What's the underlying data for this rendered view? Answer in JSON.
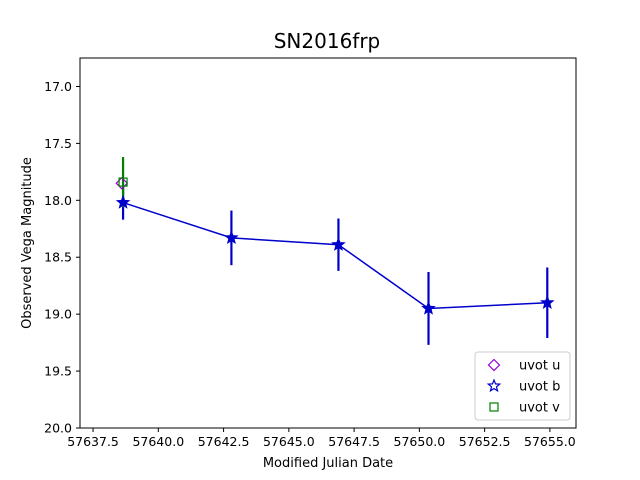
{
  "chart_data": {
    "type": "scatter",
    "title": "SN2016frp",
    "xlabel": "Modified Julian Date",
    "ylabel": "Observed Vega Magnitude",
    "xlim": [
      57637.0,
      57656.0
    ],
    "ylim": [
      20.0,
      16.75
    ],
    "y_inverted": true,
    "xticks": [
      "57637.5",
      "57640.0",
      "57642.5",
      "57645.0",
      "57647.5",
      "57650.0",
      "57652.5",
      "57655.0"
    ],
    "yticks": [
      "17.0",
      "17.5",
      "18.0",
      "18.5",
      "19.0",
      "19.5",
      "20.0"
    ],
    "legend_position": "lower-right",
    "series": [
      {
        "name": "uvot u",
        "marker": "diamond",
        "color": "#9400d3",
        "connected": false,
        "points": [
          {
            "x": 57638.6,
            "y": 17.85,
            "err": 0.0
          }
        ]
      },
      {
        "name": "uvot b",
        "marker": "star",
        "color": "#0000cd",
        "connected": true,
        "points": [
          {
            "x": 57638.65,
            "y": 18.02,
            "err": 0.15
          },
          {
            "x": 57642.8,
            "y": 18.33,
            "err": 0.24
          },
          {
            "x": 57646.9,
            "y": 18.39,
            "err": 0.23
          },
          {
            "x": 57650.35,
            "y": 18.95,
            "err": 0.32
          },
          {
            "x": 57654.9,
            "y": 18.9,
            "err": 0.31
          }
        ]
      },
      {
        "name": "uvot v",
        "marker": "square",
        "color": "#008000",
        "connected": false,
        "points": [
          {
            "x": 57638.65,
            "y": 17.84,
            "err": 0.22
          }
        ]
      }
    ]
  }
}
